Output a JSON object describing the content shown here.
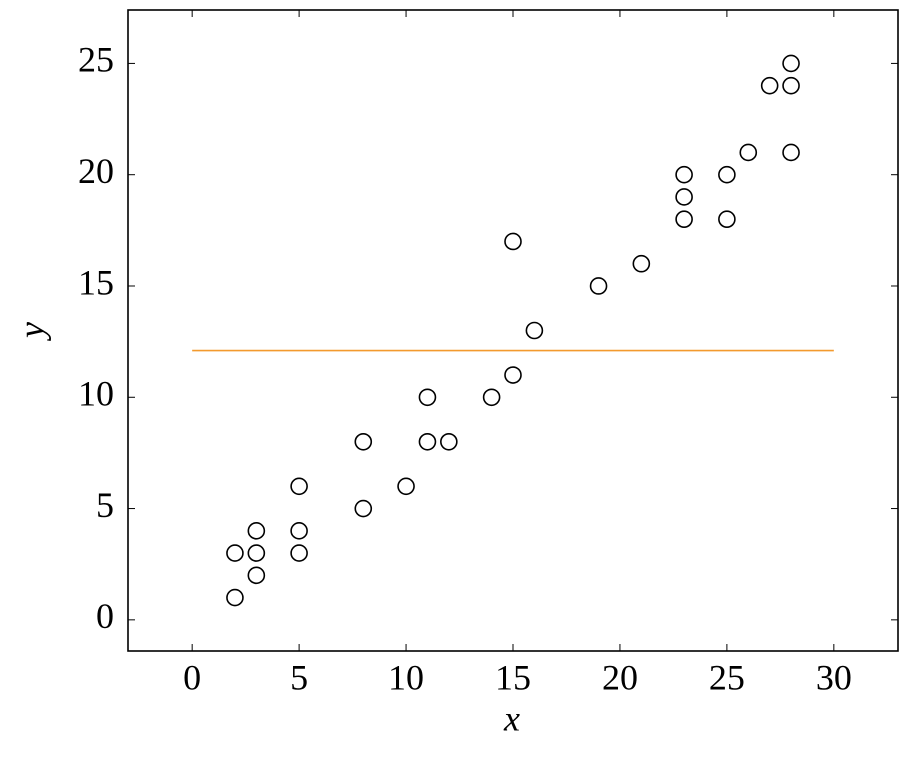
{
  "chart_data": {
    "type": "scatter",
    "x_label": "x",
    "y_label": "y",
    "x": [
      2,
      2,
      3,
      3,
      3,
      5,
      5,
      5,
      8,
      8,
      10,
      11,
      11,
      12,
      14,
      15,
      15,
      16,
      19,
      21,
      23,
      23,
      23,
      25,
      25,
      26,
      27,
      28,
      28,
      28
    ],
    "y": [
      1,
      3,
      2,
      3,
      4,
      3,
      4,
      6,
      5,
      8,
      6,
      8,
      10,
      8,
      10,
      11,
      17,
      13,
      15,
      16,
      18,
      19,
      20,
      18,
      20,
      21,
      24,
      21,
      24,
      25
    ],
    "color": "#000000",
    "line": {
      "x": [
        0,
        30
      ],
      "y": [
        12.1,
        12.1
      ],
      "color": "#f39a2e"
    },
    "xlim": [
      -3,
      33
    ],
    "ylim": [
      -1.4,
      27.4
    ],
    "xticks": [
      0,
      5,
      10,
      15,
      20,
      25,
      30
    ],
    "yticks": [
      0,
      5,
      10,
      15,
      20,
      25
    ],
    "grid": false
  }
}
